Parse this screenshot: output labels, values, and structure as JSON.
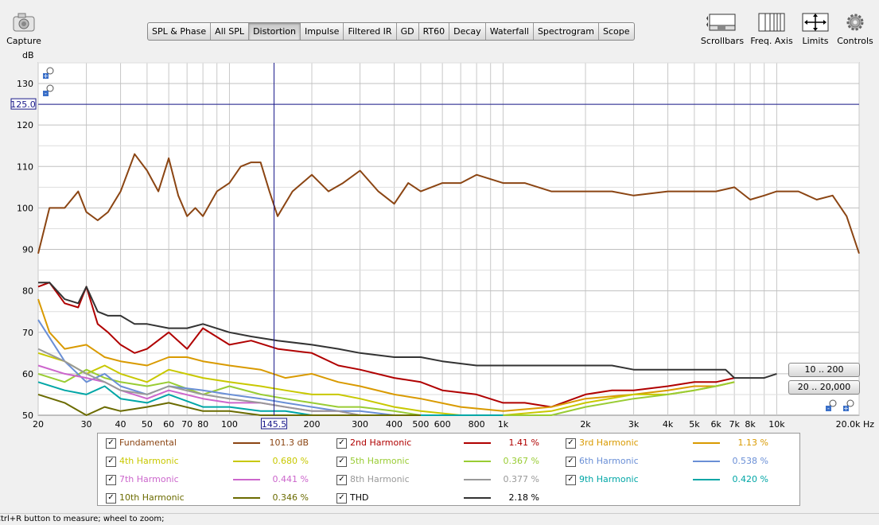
{
  "toolbar": {
    "capture_label": "Capture",
    "scrollbars_label": "Scrollbars",
    "freq_axis_label": "Freq. Axis",
    "limits_label": "Limits",
    "controls_label": "Controls"
  },
  "tabs": [
    "SPL & Phase",
    "All SPL",
    "Distortion",
    "Impulse",
    "Filtered IR",
    "GD",
    "RT60",
    "Decay",
    "Waterfall",
    "Spectrogram",
    "Scope"
  ],
  "active_tab": "Distortion",
  "cursor": {
    "level_readout": "125.0",
    "freq_readout": "145.5"
  },
  "range_buttons": {
    "low": "10 .. 200",
    "full": "20 .. 20,000"
  },
  "status_text": "Ctrl+R button to measure; wheel to zoom;",
  "legend": [
    {
      "name": "Fundamental",
      "value": "101.3 dB",
      "color": "#8b4513",
      "checked": true
    },
    {
      "name": "2nd Harmonic",
      "value": "1.41 %",
      "color": "#b00000",
      "checked": true
    },
    {
      "name": "3rd Harmonic",
      "value": "1.13 %",
      "color": "#d99a00",
      "checked": true
    },
    {
      "name": "4th Harmonic",
      "value": "0.680 %",
      "color": "#c8c800",
      "checked": true
    },
    {
      "name": "5th Harmonic",
      "value": "0.367 %",
      "color": "#99cc33",
      "checked": true
    },
    {
      "name": "6th Harmonic",
      "value": "0.538 %",
      "color": "#6a8fd6",
      "checked": true
    },
    {
      "name": "7th Harmonic",
      "value": "0.441 %",
      "color": "#cc66cc",
      "checked": true
    },
    {
      "name": "8th Harmonic",
      "value": "0.377 %",
      "color": "#999999",
      "checked": true
    },
    {
      "name": "9th Harmonic",
      "value": "0.420 %",
      "color": "#00a6a6",
      "checked": true
    },
    {
      "name": "10th Harmonic",
      "value": "0.346 %",
      "color": "#6b6b00",
      "checked": true
    },
    {
      "name": "THD",
      "value": "2.18 %",
      "color": "#333333",
      "checked": true
    }
  ],
  "chart_data": {
    "type": "line",
    "ylabel": "dB",
    "xlabel": "Hz",
    "xscale": "log",
    "xlim": [
      20,
      20000
    ],
    "ylim": [
      50,
      135
    ],
    "grid": true,
    "y_ticks": [
      "50",
      "60",
      "70",
      "80",
      "90",
      "100",
      "110",
      "120",
      "130"
    ],
    "x_ticks": [
      {
        "v": 20,
        "t": "20"
      },
      {
        "v": 30,
        "t": "30"
      },
      {
        "v": 40,
        "t": "40"
      },
      {
        "v": 50,
        "t": "50"
      },
      {
        "v": 60,
        "t": "60"
      },
      {
        "v": 70,
        "t": "70"
      },
      {
        "v": 80,
        "t": "80"
      },
      {
        "v": 100,
        "t": "100"
      },
      {
        "v": 200,
        "t": "200"
      },
      {
        "v": 300,
        "t": "300"
      },
      {
        "v": 400,
        "t": "400"
      },
      {
        "v": 500,
        "t": "500"
      },
      {
        "v": 600,
        "t": "600"
      },
      {
        "v": 800,
        "t": "800"
      },
      {
        "v": 1000,
        "t": "1k"
      },
      {
        "v": 2000,
        "t": "2k"
      },
      {
        "v": 3000,
        "t": "3k"
      },
      {
        "v": 4000,
        "t": "4k"
      },
      {
        "v": 5000,
        "t": "5k"
      },
      {
        "v": 6000,
        "t": "6k"
      },
      {
        "v": 7000,
        "t": "7k"
      },
      {
        "v": 8000,
        "t": "8k"
      },
      {
        "v": 10000,
        "t": "10k"
      },
      {
        "v": 20000,
        "t": "20.0k Hz"
      }
    ],
    "cursor_freq": 145.5,
    "cursor_level": 125.0,
    "series": [
      {
        "name": "Fundamental",
        "color": "#8b4513",
        "x": [
          20,
          22,
          25,
          28,
          30,
          33,
          36,
          40,
          45,
          50,
          55,
          60,
          65,
          70,
          75,
          80,
          90,
          100,
          110,
          120,
          130,
          140,
          150,
          170,
          200,
          230,
          260,
          300,
          350,
          400,
          450,
          500,
          600,
          700,
          800,
          1000,
          1200,
          1500,
          2000,
          2500,
          3000,
          4000,
          5000,
          6000,
          7000,
          8000,
          9000,
          10000,
          12000,
          14000,
          16000,
          18000,
          20000
        ],
        "y": [
          89,
          100,
          100,
          104,
          99,
          97,
          99,
          104,
          113,
          109,
          104,
          112,
          103,
          98,
          100,
          98,
          104,
          106,
          110,
          111,
          111,
          104,
          98,
          104,
          108,
          104,
          106,
          109,
          104,
          101,
          106,
          104,
          106,
          106,
          108,
          106,
          106,
          104,
          104,
          104,
          103,
          104,
          104,
          104,
          105,
          102,
          103,
          104,
          104,
          102,
          103,
          98,
          89
        ]
      },
      {
        "name": "2nd Harmonic",
        "color": "#b00000",
        "x": [
          20,
          22,
          25,
          28,
          30,
          33,
          36,
          40,
          45,
          50,
          60,
          70,
          80,
          100,
          120,
          150,
          200,
          250,
          300,
          400,
          500,
          600,
          800,
          1000,
          1200,
          1500,
          2000,
          2500,
          3000,
          4000,
          5000,
          6000,
          7000
        ],
        "y": [
          81,
          82,
          77,
          76,
          81,
          72,
          70,
          67,
          65,
          66,
          70,
          66,
          71,
          67,
          68,
          66,
          65,
          62,
          61,
          59,
          58,
          56,
          55,
          53,
          53,
          52,
          55,
          56,
          56,
          57,
          58,
          58,
          59
        ]
      },
      {
        "name": "3rd Harmonic",
        "color": "#d99a00",
        "x": [
          20,
          22,
          25,
          30,
          35,
          40,
          50,
          60,
          70,
          80,
          100,
          130,
          160,
          200,
          250,
          300,
          400,
          500,
          700,
          1000,
          1500,
          2000,
          3000,
          4000,
          5000,
          6000,
          7000
        ],
        "y": [
          78,
          70,
          66,
          67,
          64,
          63,
          62,
          64,
          64,
          63,
          62,
          61,
          59,
          60,
          58,
          57,
          55,
          54,
          52,
          51,
          52,
          54,
          55,
          56,
          57,
          57,
          58
        ]
      },
      {
        "name": "4th Harmonic",
        "color": "#c8c800",
        "x": [
          20,
          25,
          30,
          35,
          40,
          50,
          60,
          80,
          100,
          130,
          160,
          200,
          250,
          300,
          400,
          500,
          700,
          1000,
          1500,
          2000,
          3000,
          4000,
          5000,
          6000,
          7000
        ],
        "y": [
          65,
          63,
          60,
          62,
          60,
          58,
          61,
          59,
          58,
          57,
          56,
          55,
          55,
          54,
          52,
          51,
          50,
          50,
          51,
          53,
          55,
          55,
          56,
          57,
          58
        ]
      },
      {
        "name": "5th Harmonic",
        "color": "#99cc33",
        "x": [
          20,
          25,
          30,
          35,
          40,
          50,
          60,
          80,
          100,
          130,
          160,
          200,
          250,
          300,
          400,
          500,
          700,
          1000,
          1500,
          2000,
          3000,
          4000,
          5000,
          6000,
          7000
        ],
        "y": [
          60,
          58,
          61,
          59,
          58,
          57,
          58,
          55,
          57,
          55,
          54,
          53,
          52,
          52,
          51,
          50,
          50,
          50,
          50,
          52,
          54,
          55,
          56,
          57,
          58
        ]
      },
      {
        "name": "6th Harmonic",
        "color": "#6a8fd6",
        "x": [
          20,
          25,
          30,
          35,
          40,
          50,
          60,
          80,
          100,
          130,
          160,
          200,
          250,
          300,
          400,
          500,
          700,
          1000
        ],
        "y": [
          73,
          63,
          58,
          60,
          57,
          55,
          57,
          56,
          55,
          54,
          53,
          52,
          51,
          51,
          50,
          50,
          50,
          50
        ]
      },
      {
        "name": "7th Harmonic",
        "color": "#cc66cc",
        "x": [
          20,
          25,
          30,
          35,
          40,
          50,
          60,
          80,
          100,
          130,
          160,
          200,
          250,
          300,
          400,
          500,
          700,
          1000
        ],
        "y": [
          62,
          60,
          59,
          58,
          56,
          54,
          56,
          54,
          53,
          53,
          52,
          51,
          51,
          50,
          50,
          50,
          50,
          50
        ]
      },
      {
        "name": "8th Harmonic",
        "color": "#999999",
        "x": [
          20,
          25,
          30,
          35,
          40,
          50,
          60,
          80,
          100,
          130,
          160,
          200,
          250,
          300,
          400,
          500,
          700,
          1000
        ],
        "y": [
          66,
          63,
          60,
          58,
          56,
          55,
          57,
          55,
          54,
          53,
          52,
          51,
          51,
          50,
          50,
          50,
          50,
          50
        ]
      },
      {
        "name": "9th Harmonic",
        "color": "#00a6a6",
        "x": [
          20,
          25,
          30,
          35,
          40,
          50,
          60,
          80,
          100,
          130,
          160,
          200,
          250,
          300,
          400,
          500,
          700,
          1000
        ],
        "y": [
          58,
          56,
          55,
          57,
          54,
          53,
          55,
          52,
          52,
          51,
          51,
          50,
          50,
          50,
          50,
          50,
          50,
          50
        ]
      },
      {
        "name": "10th Harmonic",
        "color": "#6b6b00",
        "x": [
          20,
          25,
          30,
          35,
          40,
          50,
          60,
          80,
          100,
          130,
          160,
          200,
          250,
          300,
          400,
          500
        ],
        "y": [
          55,
          53,
          50,
          52,
          51,
          52,
          53,
          51,
          51,
          50,
          50,
          50,
          50,
          50,
          50,
          50
        ]
      },
      {
        "name": "THD",
        "color": "#333333",
        "x": [
          20,
          22,
          25,
          28,
          30,
          33,
          36,
          40,
          45,
          50,
          60,
          70,
          80,
          100,
          120,
          150,
          200,
          250,
          300,
          400,
          500,
          600,
          800,
          1000,
          1200,
          1500,
          2000,
          2500,
          3000,
          4000,
          5000,
          6000,
          6500,
          7000,
          8000,
          9000,
          10000
        ],
        "y": [
          82,
          82,
          78,
          77,
          81,
          75,
          74,
          74,
          72,
          72,
          71,
          71,
          72,
          70,
          69,
          68,
          67,
          66,
          65,
          64,
          64,
          63,
          62,
          62,
          62,
          62,
          62,
          62,
          61,
          61,
          61,
          61,
          61,
          59,
          59,
          59,
          60
        ]
      }
    ]
  }
}
